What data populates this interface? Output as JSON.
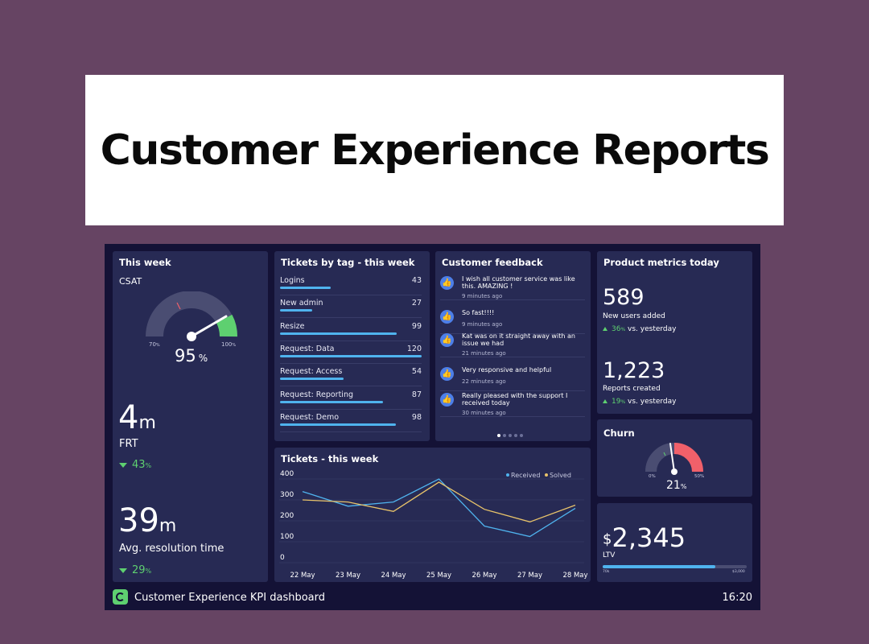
{
  "banner": {
    "title": "Customer Experience Reports"
  },
  "this_week": {
    "title": "This week",
    "csat_label": "CSAT",
    "gauge_min": "70",
    "gauge_min_unit": "%",
    "gauge_max": "100",
    "gauge_max_unit": "%",
    "csat_value": "95",
    "csat_unit": "%",
    "frt_value": "4",
    "frt_unit": "m",
    "frt_label": "FRT",
    "frt_delta": "43",
    "frt_delta_unit": "%",
    "res_value": "39",
    "res_unit": "m",
    "res_label": "Avg. resolution time",
    "res_delta": "29",
    "res_delta_unit": "%"
  },
  "tickets_by_tag": {
    "title": "Tickets by tag - this week",
    "max": 120,
    "rows": [
      {
        "label": "Logins",
        "value": 43
      },
      {
        "label": "New admin",
        "value": 27
      },
      {
        "label": "Resize",
        "value": 99
      },
      {
        "label": "Request: Data",
        "value": 120
      },
      {
        "label": "Request: Access",
        "value": 54
      },
      {
        "label": "Request: Reporting",
        "value": 87
      },
      {
        "label": "Request: Demo",
        "value": 98
      }
    ]
  },
  "feedback": {
    "title": "Customer feedback",
    "icon": "thumbs-up-icon",
    "items": [
      {
        "text": "I wish all customer service was like this. AMAZING !",
        "time": "9 minutes ago"
      },
      {
        "text": "So fast!!!!",
        "time": "9 minutes ago"
      },
      {
        "text": "Kat was on it straight away with an issue we had",
        "time": "21 minutes ago"
      },
      {
        "text": "Very responsive and helpful",
        "time": "22 minutes ago"
      },
      {
        "text": "Really pleased with the support I received today",
        "time": "30 minutes ago"
      }
    ],
    "pages": 5,
    "active_page": 1
  },
  "product_metrics": {
    "title": "Product metrics today",
    "users_value": "589",
    "users_label": "New users added",
    "users_delta": "36",
    "users_delta_unit": "%",
    "users_delta_text": "vs. yesterday",
    "reports_value": "1,223",
    "reports_label": "Reports created",
    "reports_delta": "19",
    "reports_delta_unit": "%",
    "reports_delta_text": "vs. yesterday"
  },
  "churn": {
    "title": "Churn",
    "value": "21",
    "unit": "%",
    "min": "0",
    "min_unit": "%",
    "max": "50",
    "max_unit": "%"
  },
  "ltv": {
    "currency": "$",
    "value": "2,345",
    "label": "LTV",
    "bar_min": "70",
    "bar_min_unit": "k",
    "bar_max": "3,000",
    "bar_max_prefix": "$",
    "progress": 0.78
  },
  "tickets_chart": {
    "title": "Tickets - this week"
  },
  "chart_data": {
    "type": "line",
    "title": "Tickets - this week",
    "x": [
      "22 May",
      "23 May",
      "24 May",
      "25 May",
      "26 May",
      "27 May",
      "28 May"
    ],
    "ylim": [
      0,
      400
    ],
    "yticks": [
      0,
      100,
      200,
      300,
      400
    ],
    "grid": true,
    "legend": "top-right",
    "series": [
      {
        "name": "Received",
        "color": "#4fb3ee",
        "values": [
          340,
          270,
          290,
          400,
          175,
          125,
          260
        ]
      },
      {
        "name": "Solved",
        "color": "#e8c36a",
        "values": [
          300,
          290,
          245,
          385,
          255,
          195,
          275
        ]
      }
    ]
  },
  "footer": {
    "title": "Customer Experience KPI dashboard",
    "time": "16:20"
  },
  "colors": {
    "background": "#664463",
    "dashboard": "#141236",
    "card": "#272a54",
    "accent_blue": "#4fb3ee",
    "accent_green": "#5ed070",
    "accent_red": "#f0606a"
  }
}
